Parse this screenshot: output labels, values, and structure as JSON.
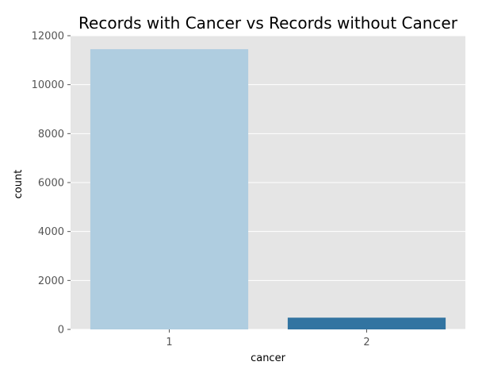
{
  "chart_data": {
    "type": "bar",
    "title": "Records with Cancer vs Records without Cancer",
    "xlabel": "cancer",
    "ylabel": "count",
    "categories": [
      "1",
      "2"
    ],
    "values": [
      11450,
      480
    ],
    "bar_colors": [
      "#afcde0",
      "#3274a1"
    ],
    "ylim": [
      0,
      12000
    ],
    "yticks": [
      "0",
      "2000",
      "4000",
      "6000",
      "8000",
      "10000",
      "12000"
    ],
    "grid": true,
    "background_color": "#e5e5e5",
    "grid_color": "#ffffff"
  }
}
